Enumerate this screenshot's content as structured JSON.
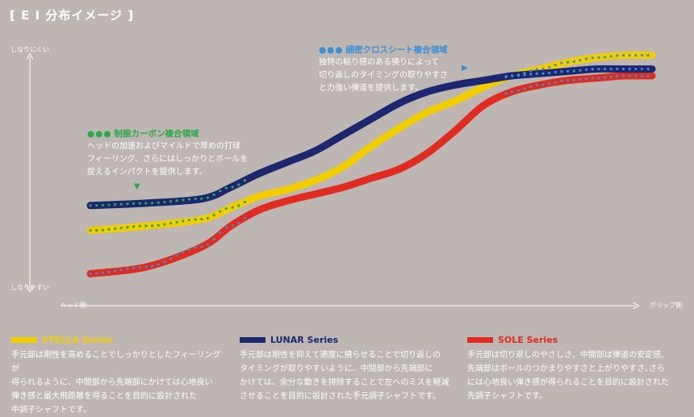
{
  "title": "[ E I 分布イメージ ]",
  "chart_data": {
    "type": "line",
    "title": "[ E I 分布イメージ ]",
    "y_top_label": "しなりにくい",
    "y_bottom_label": "しなりやすい",
    "x_left_label": "ヘッド側",
    "x_right_label": "グリップ側",
    "xlim": [
      0,
      100
    ],
    "ylim": [
      0,
      100
    ],
    "x": [
      0,
      10,
      20,
      25,
      30,
      35,
      40,
      45,
      50,
      55,
      60,
      65,
      70,
      75,
      80,
      85,
      90,
      95,
      100
    ],
    "series": [
      {
        "name": "STELLA Series",
        "color": "#f2cd00",
        "dot_color": "#2aa84a",
        "values": [
          21,
          23,
          26,
          31,
          36,
          39,
          43,
          49,
          58,
          66,
          73,
          78,
          84,
          89,
          92,
          95,
          97,
          98,
          98
        ],
        "dotted_ranges": [
          [
            0,
            28
          ],
          [
            74,
            100
          ]
        ]
      },
      {
        "name": "LUNAR Series",
        "color": "#1c2770",
        "dot_color": null,
        "values": [
          32,
          33,
          35,
          40,
          46,
          51,
          56,
          63,
          70,
          77,
          82,
          85,
          87,
          89,
          90,
          91,
          92,
          92,
          92
        ],
        "dotted_ranges": [
          [
            0,
            28
          ],
          [
            74,
            100
          ]
        ]
      },
      {
        "name": "SOLE Series",
        "color": "#e02b20",
        "dot_color": "#3a8fd6",
        "values": [
          2,
          5,
          14,
          23,
          30,
          34,
          37,
          40,
          44,
          48,
          55,
          65,
          76,
          82,
          85,
          87,
          88,
          89,
          89
        ],
        "dotted_ranges": [
          [
            0,
            28
          ],
          [
            74,
            100
          ]
        ]
      }
    ],
    "annotations": [
      {
        "key": "dense",
        "dots": "●●●",
        "title": "細密クロスシート複合領域",
        "lines": [
          "独特の粘り感のある撓りによって",
          "切り返しのタイミングの取りやすさ",
          "と力強い弾道を提供します。"
        ],
        "marker": "▶"
      },
      {
        "key": "vibration",
        "dots": "●●●",
        "title": "制振カーボン複合領域",
        "lines": [
          "ヘッドの加速およびマイルドで厚めの打球",
          "フィーリング、さらにはしっかりとボールを",
          "捉えるインパクトを提供します。"
        ],
        "marker": "▼"
      }
    ]
  },
  "legend": [
    {
      "name": "STELLA Series",
      "color": "#f2cd00",
      "lines": [
        "手元部は剛性を高めることでしっかりとしたフィーリングが",
        "得られるように、中間部から先端部にかけては心地良い",
        "弾き感と最大飛距離を得ることを目的に設計された",
        "中調子シャフトです。"
      ]
    },
    {
      "name": "LUNAR Series",
      "color": "#1c2770",
      "lines": [
        "手元部は剛性を抑えて適度に撓らせることで切り返しの",
        "タイミングが取りやすいように、中間部から先端部に",
        "かけては、余分な動きを排除することで左へのミスを軽減",
        "させることを目的に設計された手元調子シャフトです。"
      ]
    },
    {
      "name": "SOLE Series",
      "color": "#e02b20",
      "lines": [
        "手元部は切り返しのやさしさ、中間部は弾道の安定感、",
        "先端部はボールのつかまりやすさと上がりやすさ､さら",
        "には心地良い弾き感が得られることを目的に設計された",
        "先調子シャフトです。"
      ]
    }
  ],
  "colors": {
    "background": "#bdb6b2",
    "dense_accent": "#3a8fd6",
    "vibration_accent": "#2aa84a"
  }
}
